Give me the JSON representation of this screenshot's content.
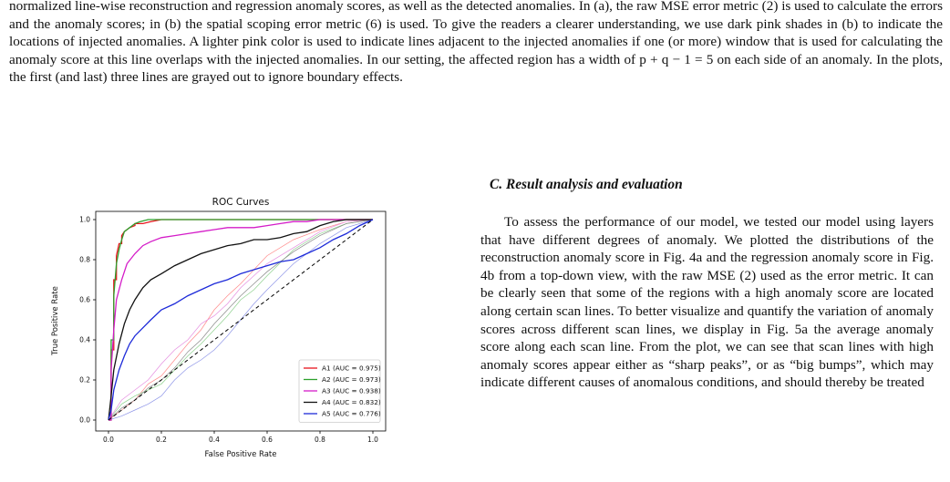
{
  "caption": {
    "text": "normalized line-wise reconstruction and regression anomaly scores, as well as the detected anomalies. In (a), the raw MSE error metric (2) is used to calculate the errors and the anomaly scores; in (b) the spatial scoping error metric (6) is used. To give the readers a clearer understanding, we use dark pink shades in (b) to indicate the locations of injected anomalies. A lighter pink color is used to indicate lines adjacent to the injected anomalies if one (or more) window that is used for calculating the anomaly score at this line overlaps with the injected anomalies. In our setting, the affected region has a width of p + q − 1 = 5 on each side of an anomaly. In the plots, the first (and last) three lines are grayed out to ignore boundary effects."
  },
  "section": {
    "heading": "C.  Result analysis and evaluation",
    "paragraph": "To assess the performance of our model, we tested our model using layers that have different degrees of anomaly. We plotted the distributions of the reconstruction anomaly score in Fig. 4a and the regression anomaly score in Fig. 4b from a top-down view, with the raw MSE (2) used as the error metric. It can be clearly seen that some of the regions with a high anomaly score are located along certain scan lines. To better visualize and quantify the variation of anomaly scores across different scan lines, we display in Fig. 5a the average anomaly score along each scan line. From the plot, we can see that scan lines with high anomaly scores appear either as “sharp peaks”, or as “big bumps”, which may indicate different causes of anomalous conditions, and should thereby be treated"
  },
  "chart_data": {
    "type": "line",
    "title": "ROC Curves",
    "xlabel": "False Positive Rate",
    "ylabel": "True Positive Rate",
    "xlim": [
      0,
      1
    ],
    "ylim": [
      0,
      1
    ],
    "x_ticks": [
      "0.0",
      "0.2",
      "0.4",
      "0.6",
      "0.8",
      "1.0"
    ],
    "y_ticks": [
      "0.0",
      "0.2",
      "0.4",
      "0.6",
      "0.8",
      "1.0"
    ],
    "grid": false,
    "legend_position": "lower-right",
    "diagonal": {
      "style": "dashed",
      "color": "#000000",
      "x": [
        0,
        1
      ],
      "y": [
        0,
        1
      ]
    },
    "series": [
      {
        "name": "A1 (AUC = 0.975)",
        "color": "#e8141c",
        "x": [
          0,
          0.01,
          0.01,
          0.02,
          0.02,
          0.03,
          0.03,
          0.04,
          0.05,
          0.05,
          0.06,
          0.07,
          0.08,
          0.1,
          0.1,
          0.13,
          0.16,
          0.2,
          0.25,
          1.0
        ],
        "y": [
          0,
          0,
          0.35,
          0.35,
          0.7,
          0.7,
          0.82,
          0.88,
          0.88,
          0.92,
          0.94,
          0.95,
          0.96,
          0.97,
          0.98,
          0.98,
          0.99,
          1.0,
          1.0,
          1.0
        ]
      },
      {
        "name": "A2 (AUC = 0.973)",
        "color": "#2ca02c",
        "x": [
          0,
          0.01,
          0.01,
          0.02,
          0.02,
          0.03,
          0.04,
          0.05,
          0.06,
          0.07,
          0.08,
          0.1,
          0.12,
          0.15,
          0.2,
          1.0
        ],
        "y": [
          0,
          0,
          0.4,
          0.4,
          0.62,
          0.78,
          0.85,
          0.9,
          0.94,
          0.95,
          0.96,
          0.98,
          0.99,
          1.0,
          1.0,
          1.0
        ]
      },
      {
        "name": "A3 (AUC = 0.938)",
        "color": "#d41cc8",
        "x": [
          0,
          0.01,
          0.01,
          0.02,
          0.03,
          0.05,
          0.07,
          0.1,
          0.13,
          0.16,
          0.2,
          0.25,
          0.3,
          0.35,
          0.4,
          0.45,
          0.5,
          0.55,
          0.6,
          0.65,
          0.7,
          0.75,
          0.8,
          0.85,
          0.9,
          1.0
        ],
        "y": [
          0,
          0,
          0.25,
          0.45,
          0.6,
          0.7,
          0.78,
          0.83,
          0.87,
          0.89,
          0.91,
          0.92,
          0.93,
          0.94,
          0.95,
          0.96,
          0.96,
          0.96,
          0.97,
          0.98,
          0.99,
          0.99,
          1.0,
          1.0,
          1.0,
          1.0
        ]
      },
      {
        "name": "A4 (AUC = 0.832)",
        "color": "#111111",
        "x": [
          0,
          0.01,
          0.02,
          0.04,
          0.06,
          0.08,
          0.1,
          0.13,
          0.16,
          0.2,
          0.25,
          0.3,
          0.35,
          0.4,
          0.45,
          0.5,
          0.55,
          0.6,
          0.65,
          0.7,
          0.75,
          0.8,
          0.85,
          0.9,
          0.95,
          1.0
        ],
        "y": [
          0,
          0.12,
          0.25,
          0.38,
          0.48,
          0.55,
          0.6,
          0.66,
          0.7,
          0.73,
          0.77,
          0.8,
          0.83,
          0.85,
          0.87,
          0.88,
          0.9,
          0.9,
          0.91,
          0.93,
          0.94,
          0.97,
          0.99,
          1.0,
          1.0,
          1.0
        ]
      },
      {
        "name": "A5 (AUC = 0.776)",
        "color": "#1e2bd9",
        "x": [
          0,
          0.01,
          0.02,
          0.04,
          0.06,
          0.08,
          0.1,
          0.13,
          0.16,
          0.2,
          0.25,
          0.3,
          0.35,
          0.4,
          0.45,
          0.5,
          0.55,
          0.6,
          0.65,
          0.7,
          0.75,
          0.8,
          0.85,
          0.9,
          0.95,
          1.0
        ],
        "y": [
          0,
          0.05,
          0.15,
          0.25,
          0.32,
          0.38,
          0.42,
          0.46,
          0.5,
          0.55,
          0.58,
          0.62,
          0.65,
          0.68,
          0.7,
          0.73,
          0.75,
          0.77,
          0.79,
          0.8,
          0.83,
          0.86,
          0.9,
          0.93,
          0.97,
          1.0
        ]
      },
      {
        "name": "",
        "color": "#ff8a8a",
        "x": [
          0,
          0.05,
          0.1,
          0.15,
          0.2,
          0.25,
          0.3,
          0.35,
          0.4,
          0.45,
          0.5,
          0.55,
          0.6,
          0.7,
          0.8,
          0.9,
          1.0
        ],
        "y": [
          0,
          0.05,
          0.1,
          0.18,
          0.22,
          0.3,
          0.38,
          0.45,
          0.55,
          0.62,
          0.68,
          0.75,
          0.82,
          0.9,
          0.95,
          0.99,
          1.0
        ]
      },
      {
        "name": "",
        "color": "#8fd18f",
        "x": [
          0,
          0.05,
          0.1,
          0.15,
          0.2,
          0.25,
          0.3,
          0.35,
          0.4,
          0.45,
          0.5,
          0.55,
          0.6,
          0.7,
          0.8,
          0.9,
          1.0
        ],
        "y": [
          0,
          0.08,
          0.12,
          0.15,
          0.18,
          0.25,
          0.32,
          0.38,
          0.45,
          0.52,
          0.6,
          0.65,
          0.72,
          0.85,
          0.93,
          0.98,
          1.0
        ]
      },
      {
        "name": "",
        "color": "#e58fe0",
        "x": [
          0,
          0.05,
          0.1,
          0.15,
          0.2,
          0.25,
          0.3,
          0.35,
          0.4,
          0.45,
          0.5,
          0.55,
          0.6,
          0.7,
          0.8,
          0.9,
          1.0
        ],
        "y": [
          0,
          0.1,
          0.15,
          0.2,
          0.28,
          0.35,
          0.4,
          0.48,
          0.52,
          0.58,
          0.66,
          0.72,
          0.78,
          0.86,
          0.94,
          0.99,
          1.0
        ]
      },
      {
        "name": "",
        "color": "#8a8a8a",
        "x": [
          0,
          0.05,
          0.1,
          0.15,
          0.2,
          0.25,
          0.3,
          0.35,
          0.4,
          0.45,
          0.5,
          0.55,
          0.6,
          0.7,
          0.8,
          0.9,
          1.0
        ],
        "y": [
          0,
          0.06,
          0.1,
          0.16,
          0.2,
          0.26,
          0.34,
          0.4,
          0.48,
          0.55,
          0.62,
          0.68,
          0.74,
          0.84,
          0.92,
          0.98,
          1.0
        ]
      },
      {
        "name": "",
        "color": "#8f96e8",
        "x": [
          0,
          0.05,
          0.1,
          0.15,
          0.2,
          0.25,
          0.3,
          0.35,
          0.4,
          0.45,
          0.5,
          0.55,
          0.6,
          0.7,
          0.8,
          0.9,
          1.0
        ],
        "y": [
          0,
          0.02,
          0.05,
          0.08,
          0.12,
          0.2,
          0.26,
          0.3,
          0.35,
          0.42,
          0.5,
          0.58,
          0.65,
          0.78,
          0.88,
          0.96,
          1.0
        ]
      }
    ]
  }
}
